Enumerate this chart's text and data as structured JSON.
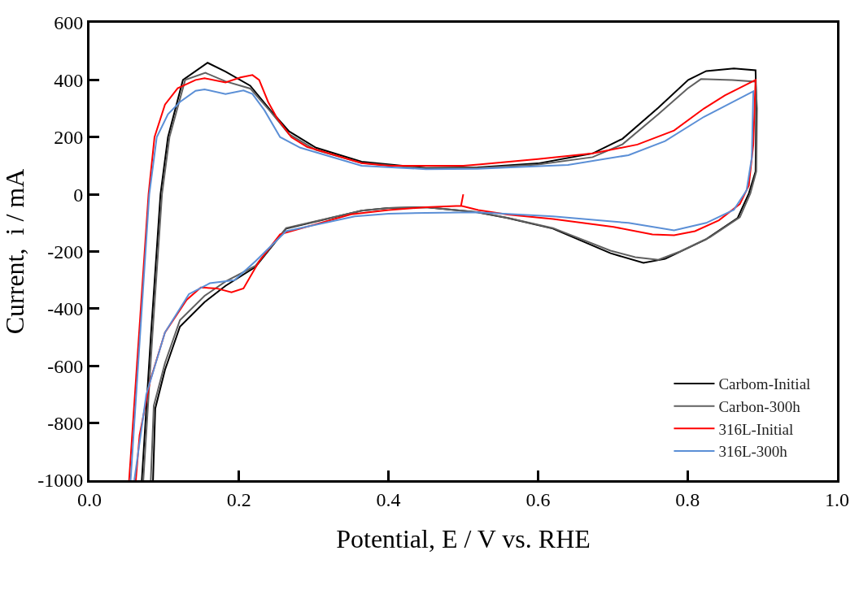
{
  "chart_data": {
    "type": "line",
    "xlabel": "Potential, E / V vs. RHE",
    "ylabel": "Current,  i / mA",
    "xlim": [
      0.0,
      1.0
    ],
    "ylim": [
      -1000,
      600
    ],
    "xticks": [
      {
        "value": 0.0,
        "label": "0.0"
      },
      {
        "value": 0.2,
        "label": "0.2"
      },
      {
        "value": 0.4,
        "label": "0.4"
      },
      {
        "value": 0.6,
        "label": "0.6"
      },
      {
        "value": 0.8,
        "label": "0.8"
      },
      {
        "value": 1.0,
        "label": "1.0"
      }
    ],
    "yticks": [
      600,
      400,
      200,
      0,
      -200,
      -400,
      -600,
      -800,
      -1000
    ],
    "legend": "bottom right",
    "line_style": "solid",
    "marker": "none",
    "series": [
      {
        "name": "Carbom-Initial",
        "color": "#000000",
        "x": [
          0.07,
          0.082,
          0.095,
          0.105,
          0.125,
          0.158,
          0.182,
          0.215,
          0.242,
          0.267,
          0.303,
          0.364,
          0.45,
          0.519,
          0.6,
          0.673,
          0.713,
          0.761,
          0.801,
          0.825,
          0.862,
          0.891,
          0.892,
          0.891,
          0.882,
          0.867,
          0.825,
          0.77,
          0.741,
          0.697,
          0.62,
          0.559,
          0.519,
          0.45,
          0.4,
          0.364,
          0.263,
          0.222,
          0.182,
          0.154,
          0.121,
          0.101,
          0.088,
          0.085
        ],
        "values": [
          -1000,
          -500,
          0,
          200,
          400,
          460,
          429,
          380,
          294,
          220,
          163,
          114,
          92,
          94,
          108,
          143,
          194,
          303,
          400,
          431,
          440,
          434,
          317,
          80,
          3,
          -83,
          -157,
          -226,
          -240,
          -206,
          -120,
          -83,
          -63,
          -45,
          -48,
          -57,
          -120,
          -254,
          -320,
          -377,
          -463,
          -614,
          -749,
          -1000
        ]
      },
      {
        "name": "Carbon-300h",
        "color": "#606060",
        "x": [
          0.072,
          0.084,
          0.097,
          0.107,
          0.128,
          0.155,
          0.182,
          0.215,
          0.242,
          0.267,
          0.303,
          0.364,
          0.45,
          0.519,
          0.6,
          0.673,
          0.713,
          0.761,
          0.8,
          0.818,
          0.86,
          0.891,
          0.893,
          0.892,
          0.884,
          0.87,
          0.83,
          0.79,
          0.761,
          0.73,
          0.697,
          0.62,
          0.559,
          0.519,
          0.45,
          0.4,
          0.364,
          0.263,
          0.222,
          0.182,
          0.154,
          0.121,
          0.101,
          0.086,
          0.082
        ],
        "values": [
          -1000,
          -500,
          0,
          200,
          400,
          425,
          395,
          370,
          290,
          210,
          155,
          110,
          90,
          92,
          104,
          130,
          175,
          280,
          370,
          403,
          400,
          394,
          300,
          80,
          3,
          -80,
          -150,
          -200,
          -229,
          -220,
          -197,
          -118,
          -82,
          -62,
          -45,
          -48,
          -57,
          -118,
          -250,
          -305,
          -355,
          -440,
          -590,
          -740,
          -1000
        ]
      },
      {
        "name": "316L-Initial",
        "color": "#ff0000",
        "x": [
          0.053,
          0.079,
          0.087,
          0.101,
          0.118,
          0.142,
          0.154,
          0.182,
          0.202,
          0.218,
          0.227,
          0.239,
          0.251,
          0.27,
          0.291,
          0.364,
          0.4,
          0.5,
          0.52,
          0.6,
          0.673,
          0.733,
          0.782,
          0.822,
          0.85,
          0.891,
          0.888,
          0.882,
          0.87,
          0.842,
          0.81,
          0.782,
          0.753,
          0.701,
          0.62,
          0.559,
          0.52,
          0.497,
          0.5,
          0.497,
          0.45,
          0.4,
          0.35,
          0.255,
          0.227,
          0.206,
          0.19,
          0.17,
          0.149,
          0.13,
          0.101,
          0.081,
          0.067,
          0.062
        ],
        "values": [
          -1000,
          0,
          200,
          314,
          371,
          400,
          406,
          391,
          409,
          417,
          400,
          323,
          266,
          200,
          166,
          109,
          100,
          100,
          104,
          123,
          143,
          174,
          223,
          300,
          346,
          400,
          174,
          31,
          -34,
          -91,
          -129,
          -143,
          -140,
          -114,
          -86,
          -71,
          -55,
          -40,
          0,
          -40,
          -45,
          -55,
          -70,
          -140,
          -234,
          -329,
          -343,
          -329,
          -326,
          -369,
          -483,
          -654,
          -843,
          -1000
        ]
      },
      {
        "name": "316L-300h",
        "color": "#5b8fd6",
        "x": [
          0.055,
          0.08,
          0.09,
          0.105,
          0.121,
          0.142,
          0.154,
          0.182,
          0.206,
          0.218,
          0.234,
          0.255,
          0.282,
          0.364,
          0.45,
          0.519,
          0.64,
          0.721,
          0.77,
          0.822,
          0.888,
          0.886,
          0.879,
          0.862,
          0.825,
          0.782,
          0.721,
          0.62,
          0.519,
          0.45,
          0.4,
          0.355,
          0.263,
          0.222,
          0.194,
          0.161,
          0.133,
          0.101,
          0.076,
          0.06
        ],
        "values": [
          -1000,
          0,
          200,
          280,
          323,
          362,
          367,
          351,
          363,
          351,
          294,
          200,
          163,
          100,
          88,
          89,
          103,
          137,
          186,
          271,
          360,
          129,
          14,
          -54,
          -100,
          -126,
          -100,
          -77,
          -63,
          -65,
          -68,
          -77,
          -129,
          -234,
          -300,
          -311,
          -349,
          -483,
          -700,
          -1000
        ]
      }
    ]
  }
}
